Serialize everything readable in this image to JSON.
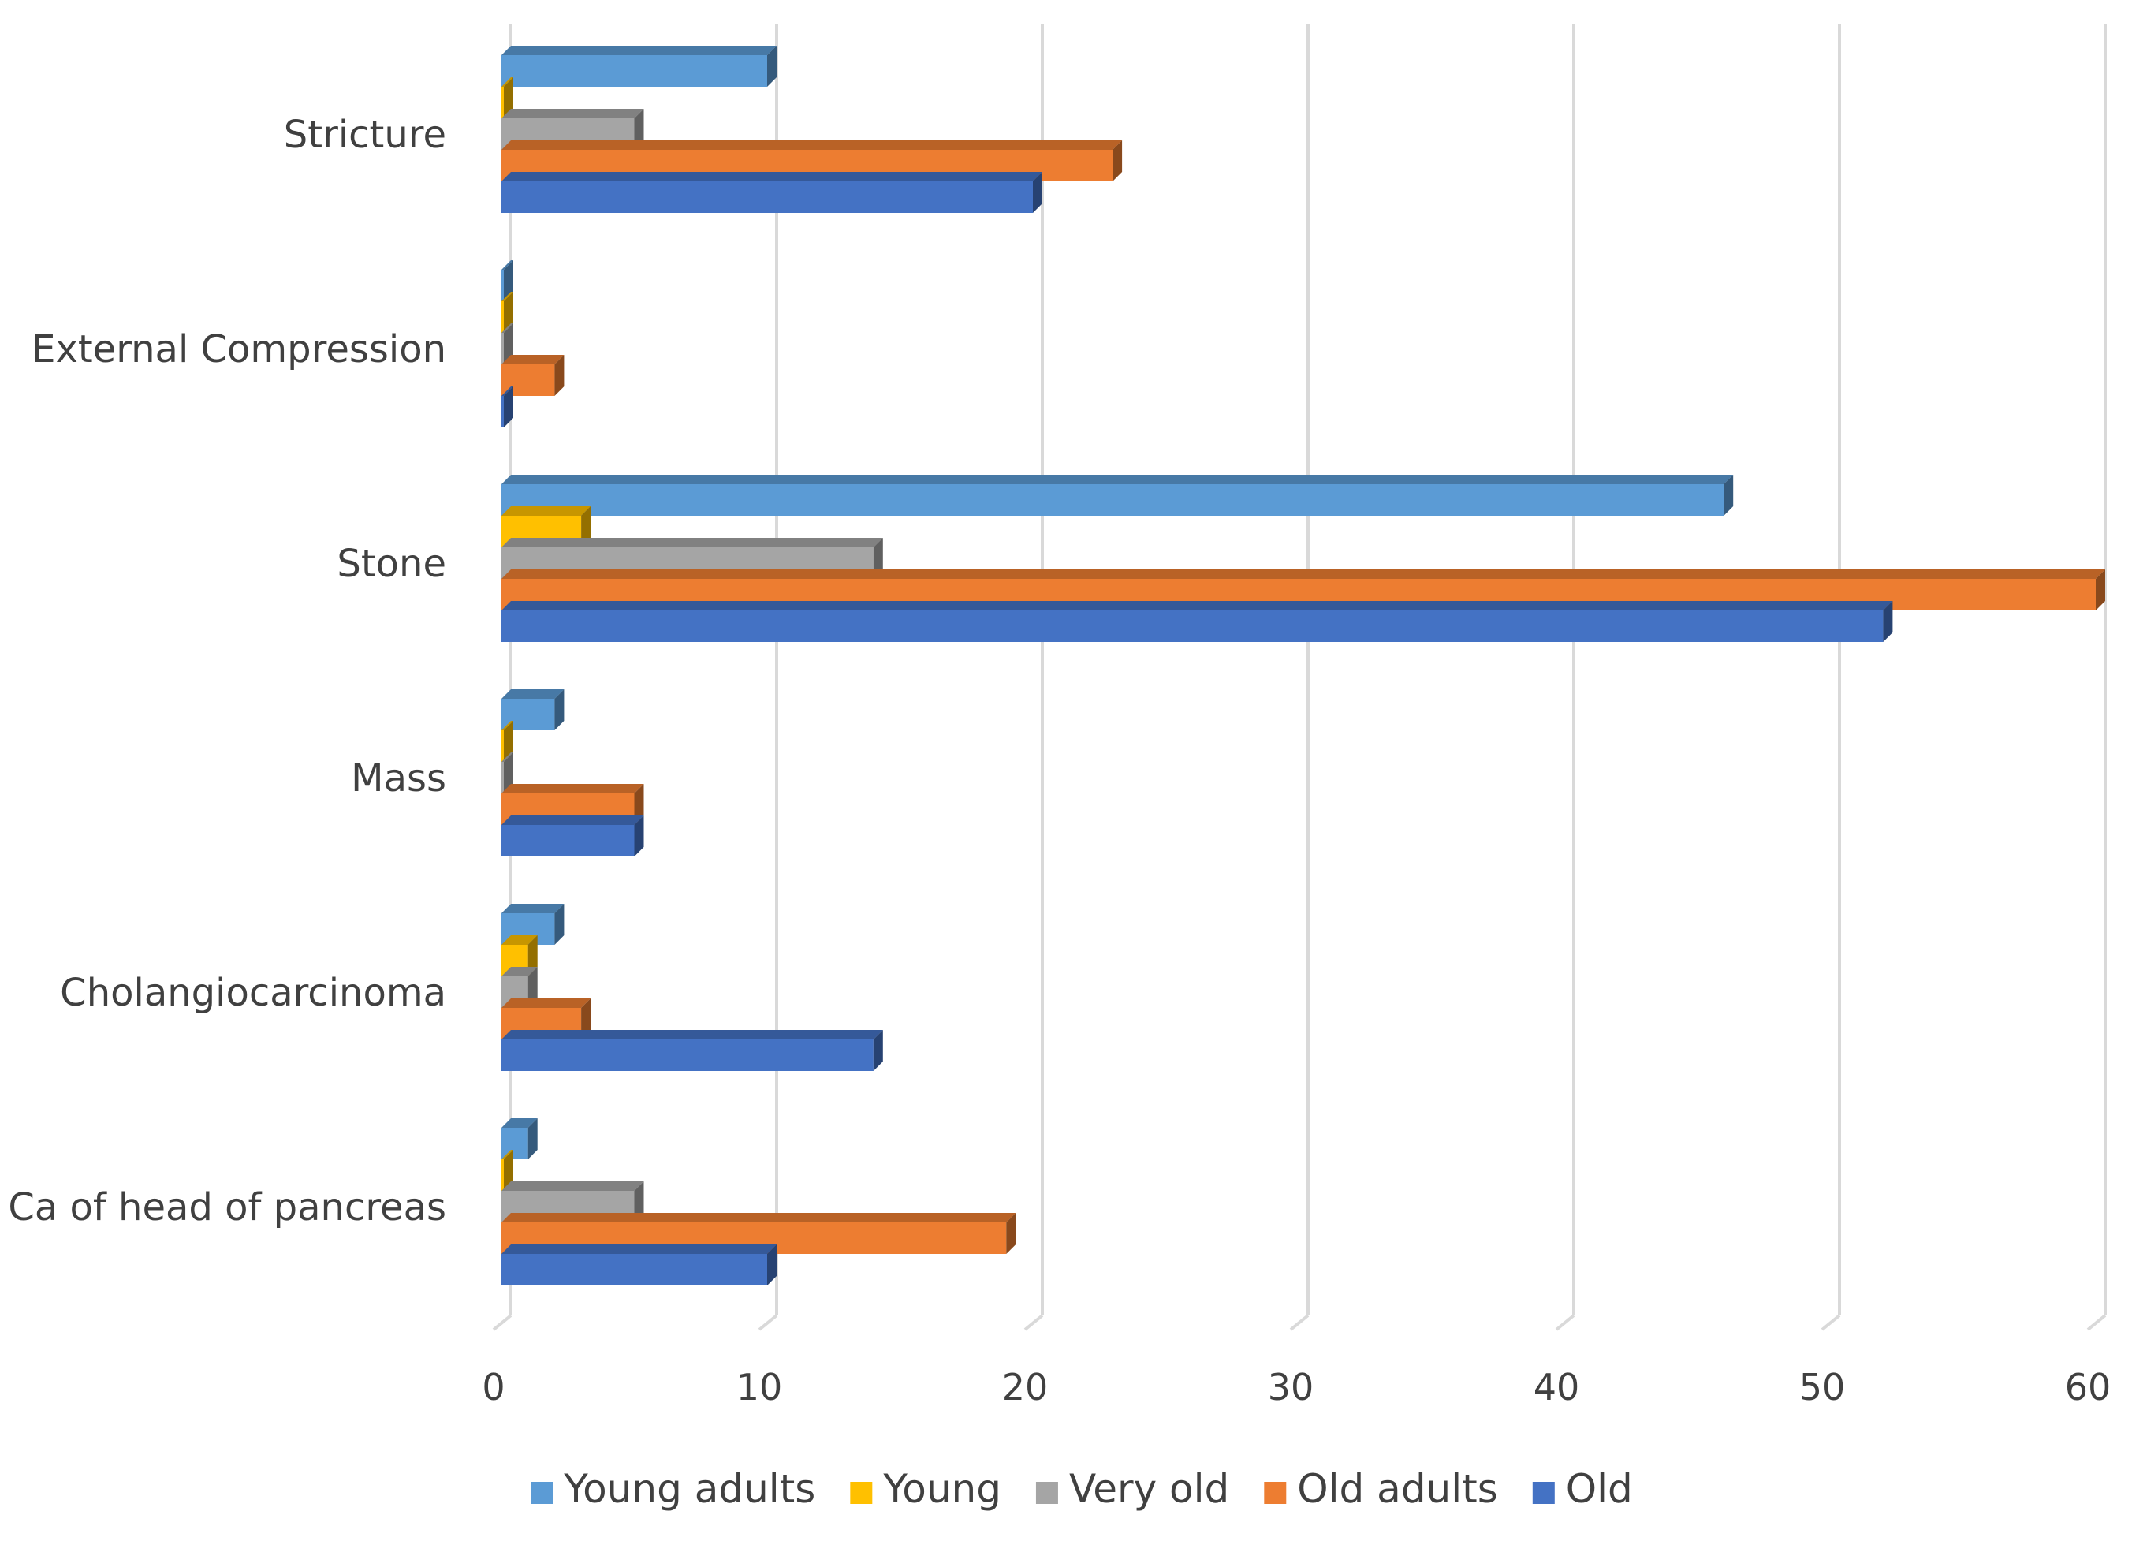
{
  "chart_data": {
    "type": "bar",
    "orientation": "horizontal",
    "style": "3d",
    "title": "",
    "xlabel": "",
    "ylabel": "",
    "xlim": [
      0,
      60
    ],
    "x_ticks": [
      "0",
      "10",
      "20",
      "30",
      "40",
      "50",
      "60"
    ],
    "grid": true,
    "legend_position": "bottom",
    "categories": [
      "Stricture",
      "External Compression",
      "Stone",
      "Mass",
      "Cholangiocarcinoma",
      "Ca of head of pancreas"
    ],
    "series": [
      {
        "name": "Young adults",
        "color": "#5B9BD5",
        "values": [
          10,
          0,
          46,
          2,
          2,
          1
        ]
      },
      {
        "name": "Young",
        "color": "#FFC000",
        "values": [
          0,
          0,
          3,
          0,
          1,
          0
        ]
      },
      {
        "name": "Very old",
        "color": "#A5A5A5",
        "values": [
          5,
          0,
          14,
          0,
          1,
          5
        ]
      },
      {
        "name": "Old adults",
        "color": "#ED7D31",
        "values": [
          23,
          2,
          60,
          5,
          3,
          19
        ]
      },
      {
        "name": "Old",
        "color": "#4472C4",
        "values": [
          20,
          0,
          52,
          5,
          14,
          10
        ]
      }
    ]
  }
}
